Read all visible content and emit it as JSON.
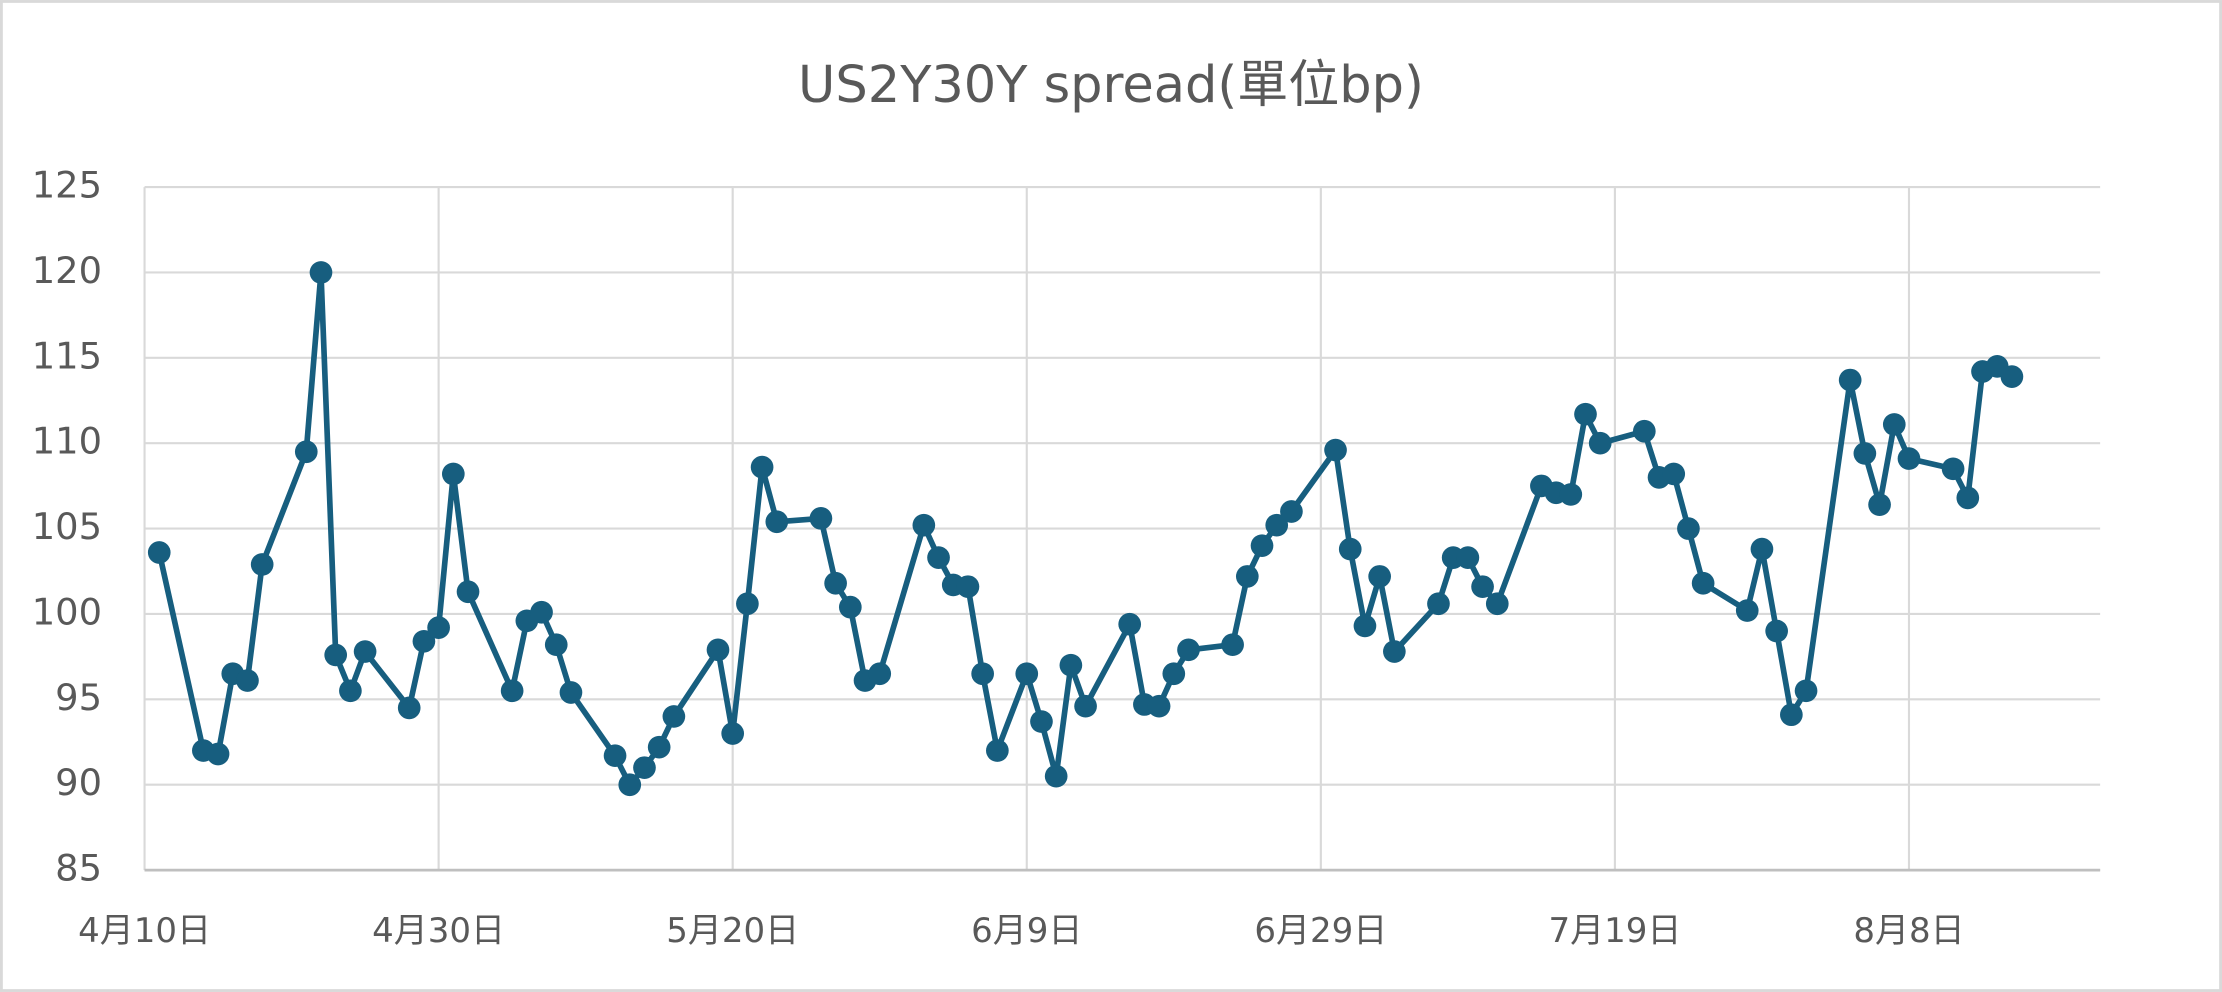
{
  "chart_data": {
    "type": "line",
    "title": "US2Y30Y spread(單位bp)",
    "x": [
      "4月11日",
      "4月14日",
      "4月15日",
      "4月16日",
      "4月17日",
      "4月18日",
      "4月21日",
      "4月22日",
      "4月23日",
      "4月24日",
      "4月25日",
      "4月28日",
      "4月29日",
      "4月30日",
      "5月1日",
      "5月2日",
      "5月5日",
      "5月6日",
      "5月7日",
      "5月8日",
      "5月9日",
      "5月12日",
      "5月13日",
      "5月14日",
      "5月15日",
      "5月16日",
      "5月19日",
      "5月20日",
      "5月21日",
      "5月22日",
      "5月23日",
      "5月26日",
      "5月27日",
      "5月28日",
      "5月29日",
      "5月30日",
      "6月2日",
      "6月3日",
      "6月4日",
      "6月5日",
      "6月6日",
      "6月7日",
      "6月9日",
      "6月10日",
      "6月11日",
      "6月12日",
      "6月13日",
      "6月16日",
      "6月17日",
      "6月18日",
      "6月19日",
      "6月20日",
      "6月23日",
      "6月24日",
      "6月25日",
      "6月26日",
      "6月27日",
      "6月30日",
      "7月1日",
      "7月2日",
      "7月3日",
      "7月4日",
      "7月7日",
      "7月8日",
      "7月9日",
      "7月10日",
      "7月11日",
      "7月14日",
      "7月15日",
      "7月16日",
      "7月17日",
      "7月18日",
      "7月21日",
      "7月22日",
      "7月23日",
      "7月24日",
      "7月25日",
      "7月28日",
      "7月29日",
      "7月30日",
      "7月31日",
      "8月1日",
      "8月4日",
      "8月5日",
      "8月6日",
      "8月7日",
      "8月8日",
      "8月11日",
      "8月12日",
      "8月13日",
      "8月14日",
      "8月15日"
    ],
    "series": [
      {
        "name": "US2Y30Y spread",
        "color": "#175e7f",
        "values": [
          103.6,
          92.0,
          91.8,
          96.5,
          96.1,
          102.9,
          109.5,
          120,
          97.6,
          95.5,
          97.8,
          94.5,
          98.4,
          99.2,
          108.2,
          101.3,
          95.5,
          99.6,
          100.1,
          98.2,
          95.4,
          91.7,
          90.0,
          91.0,
          92.2,
          94.0,
          97.9,
          93.0,
          100.6,
          108.6,
          105.4,
          105.6,
          101.8,
          100.4,
          96.1,
          96.5,
          105.2,
          103.3,
          101.7,
          101.6,
          96.5,
          92.0,
          96.5,
          93.7,
          90.5,
          97.0,
          94.6,
          99.4,
          94.7,
          94.6,
          96.5,
          97.9,
          98.2,
          102.2,
          104.0,
          105.2,
          106.0,
          109.6,
          103.8,
          99.3,
          102.2,
          97.8,
          100.6,
          103.3,
          103.3,
          101.6,
          100.6,
          107.5,
          107.1,
          107.0,
          111.7,
          110.0,
          110.7,
          108.0,
          108.2,
          105.0,
          101.8,
          100.2,
          103.8,
          99.0,
          94.1,
          95.5,
          113.7,
          109.4,
          106.4,
          111.1,
          109.1,
          108.5,
          106.8,
          114.2,
          114.5,
          113.9
        ]
      }
    ],
    "xlim": [
      "4月10日",
      "8月21日"
    ],
    "xticks": [
      "4月10日",
      "4月30日",
      "5月20日",
      "6月9日",
      "6月29日",
      "7月19日",
      "8月8日"
    ],
    "ylim": [
      85,
      125
    ],
    "yticks": [
      85,
      90,
      95,
      100,
      105,
      110,
      115,
      120,
      125
    ],
    "grid": true
  }
}
